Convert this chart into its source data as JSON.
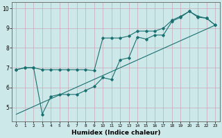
{
  "title": "",
  "xlabel": "Humidex (Indice chaleur)",
  "ylabel": "",
  "bg_color": "#cce8e8",
  "grid_color": "#c8a8b8",
  "line_color": "#1a7070",
  "xlim": [
    -0.5,
    23.5
  ],
  "ylim": [
    4.3,
    10.3
  ],
  "xticks": [
    0,
    1,
    2,
    3,
    4,
    5,
    6,
    7,
    8,
    9,
    10,
    11,
    12,
    13,
    14,
    15,
    16,
    17,
    18,
    19,
    20,
    21,
    22,
    23
  ],
  "yticks": [
    5,
    6,
    7,
    8,
    9,
    10
  ],
  "line1_x": [
    0,
    1,
    2,
    3,
    4,
    5,
    6,
    7,
    8,
    9,
    10,
    11,
    12,
    13,
    14,
    15,
    16,
    17,
    18,
    19,
    20,
    21,
    22,
    23
  ],
  "line1_y": [
    6.9,
    7.0,
    7.0,
    4.65,
    5.55,
    5.65,
    5.65,
    5.65,
    5.85,
    6.05,
    6.5,
    6.4,
    7.4,
    7.5,
    8.55,
    8.45,
    8.65,
    8.65,
    9.35,
    9.55,
    9.85,
    9.55,
    9.5,
    9.15
  ],
  "line2_x": [
    0,
    1,
    2,
    3,
    4,
    5,
    6,
    7,
    8,
    9,
    10,
    11,
    12,
    13,
    14,
    15,
    16,
    17,
    18,
    19,
    20,
    21,
    22,
    23
  ],
  "line2_y": [
    6.9,
    7.0,
    7.0,
    6.9,
    6.9,
    6.9,
    6.9,
    6.9,
    6.9,
    6.85,
    8.5,
    8.5,
    8.5,
    8.6,
    8.85,
    8.85,
    8.85,
    9.0,
    9.4,
    9.6,
    9.85,
    9.6,
    9.5,
    9.15
  ],
  "line3_x": [
    0,
    23
  ],
  "line3_y": [
    4.65,
    9.15
  ]
}
